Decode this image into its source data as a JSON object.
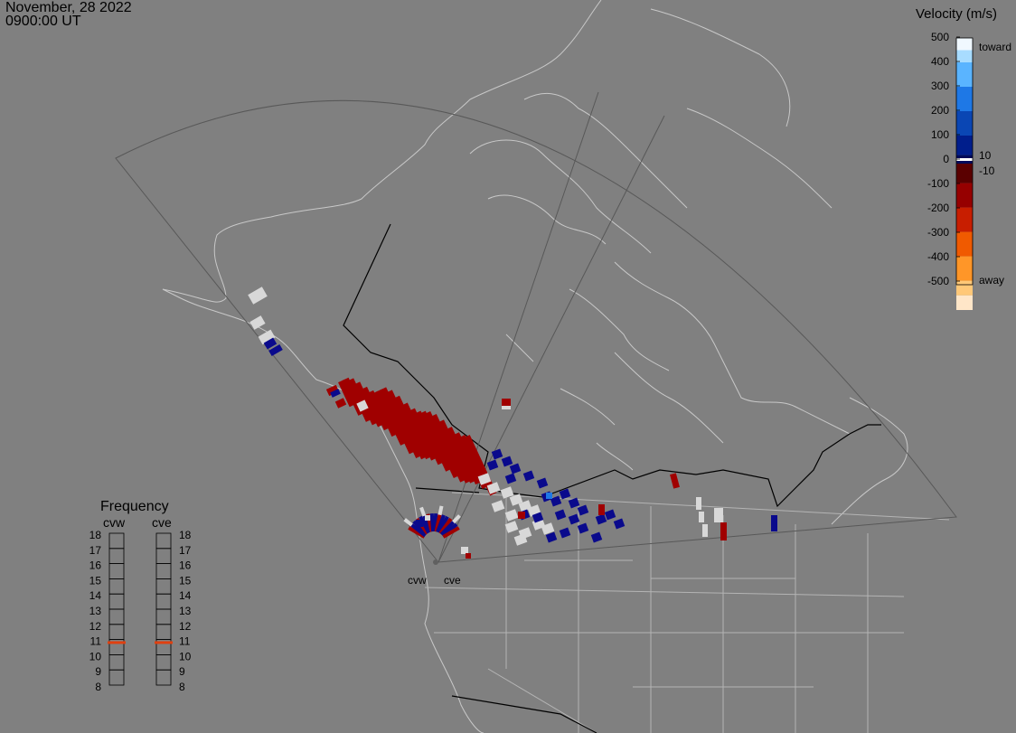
{
  "header": {
    "date": "November, 28 2022",
    "time": "0900:00 UT"
  },
  "colorbar": {
    "title": "Velocity (m/s)",
    "ticks": [
      "500",
      "400",
      "300",
      "200",
      "100",
      "0",
      "-100",
      "-200",
      "-300",
      "-400",
      "-500"
    ],
    "toward_label": "toward",
    "away_label": "away",
    "pos_threshold": "10",
    "neg_threshold": "-10",
    "colors": [
      "#f0f8ff",
      "#a8dcff",
      "#5ab4ff",
      "#1e78e6",
      "#0a46b4",
      "#001e8c",
      "#000a5a",
      "#ffffff",
      "#5a0000",
      "#960000",
      "#c81e00",
      "#f05a00",
      "#ff9628",
      "#ffc878",
      "#ffe6c8"
    ]
  },
  "radars": [
    {
      "code": "cvw"
    },
    {
      "code": "cve"
    }
  ],
  "frequency": {
    "title": "Frequency",
    "columns": [
      "cvw",
      "cve"
    ],
    "scale": [
      "18",
      "17",
      "16",
      "15",
      "14",
      "13",
      "12",
      "11",
      "10",
      "9",
      "8"
    ],
    "values": [
      10.8,
      10.8
    ],
    "marker_color": "#e04010"
  },
  "colors": {
    "background": "#808080",
    "coastline": "#c8c8c8",
    "fov": "#585858",
    "toward": "#0a0a8c",
    "away": "#a00000",
    "ground_scatter": "#d8d8d8"
  }
}
